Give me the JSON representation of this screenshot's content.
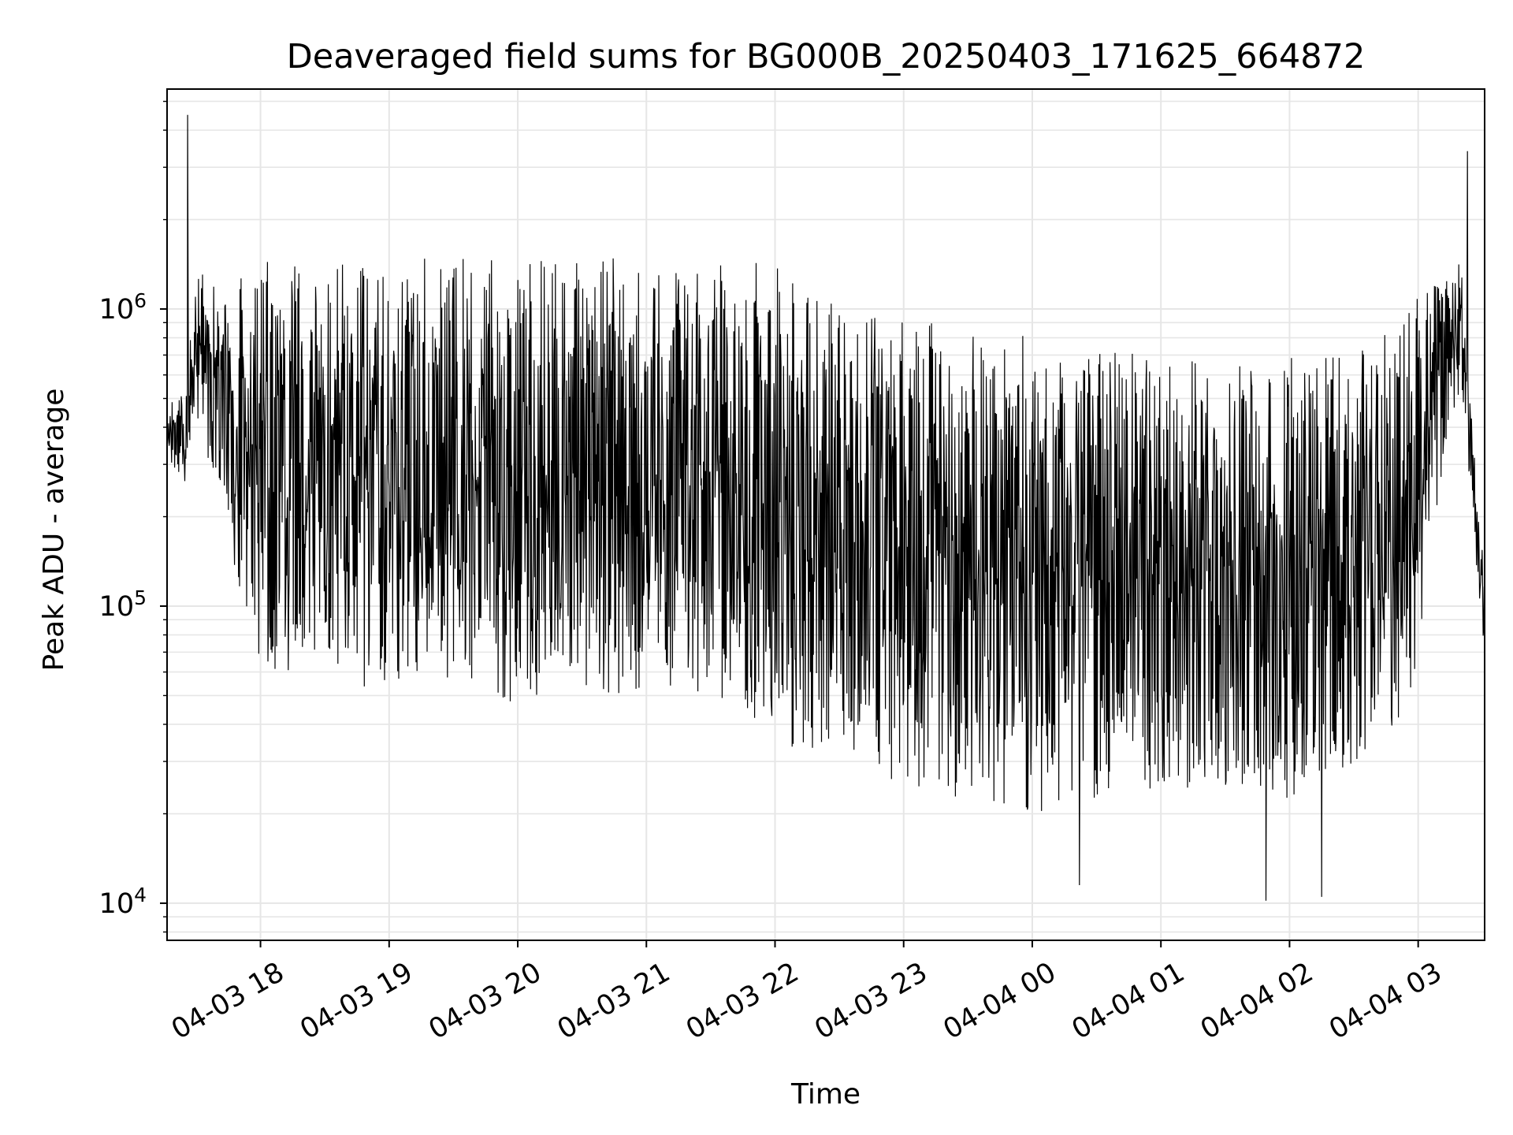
{
  "chart_data": {
    "type": "line",
    "title": "Deaveraged field sums for BG000B_20250403_171625_664872",
    "xlabel": "Time",
    "ylabel": "Peak ADU - average",
    "yscale": "log",
    "ylim": [
      7500,
      5500000
    ],
    "xlim": [
      "2025-04-03 17:16:25",
      "2025-04-04 03:31:00"
    ],
    "grid": true,
    "legend": "none",
    "line_color": "#000000",
    "grid_color": "#e6e6e6",
    "x_ticks": [
      {
        "t": "2025-04-03 18:00",
        "label": "04-03 18"
      },
      {
        "t": "2025-04-03 19:00",
        "label": "04-03 19"
      },
      {
        "t": "2025-04-03 20:00",
        "label": "04-03 20"
      },
      {
        "t": "2025-04-03 21:00",
        "label": "04-03 21"
      },
      {
        "t": "2025-04-03 22:00",
        "label": "04-03 22"
      },
      {
        "t": "2025-04-03 23:00",
        "label": "04-03 23"
      },
      {
        "t": "2025-04-04 00:00",
        "label": "04-04 00"
      },
      {
        "t": "2025-04-04 01:00",
        "label": "04-04 01"
      },
      {
        "t": "2025-04-04 02:00",
        "label": "04-04 02"
      },
      {
        "t": "2025-04-04 03:00",
        "label": "04-04 03"
      }
    ],
    "y_ticks": [
      {
        "value": 10000,
        "base": "10",
        "exp": "4"
      },
      {
        "value": 100000,
        "base": "10",
        "exp": "5"
      },
      {
        "value": 1000000,
        "base": "10",
        "exp": "6"
      }
    ],
    "envelope_note_values": {
      "x": [
        "2025-04-03 17:16",
        "2025-04-03 17:25",
        "2025-04-03 17:30",
        "2025-04-03 18:00",
        "2025-04-03 18:30",
        "2025-04-03 19:00",
        "2025-04-03 19:30",
        "2025-04-03 20:00",
        "2025-04-03 20:30",
        "2025-04-03 21:00",
        "2025-04-03 21:30",
        "2025-04-03 22:00",
        "2025-04-03 22:30",
        "2025-04-03 23:00",
        "2025-04-03 23:30",
        "2025-04-04 00:00",
        "2025-04-04 00:30",
        "2025-04-04 01:00",
        "2025-04-04 01:30",
        "2025-04-04 02:00",
        "2025-04-04 02:30",
        "2025-04-04 02:55",
        "2025-04-04 03:10",
        "2025-04-04 03:20",
        "2025-04-04 03:31"
      ],
      "upper": [
        500000,
        520000,
        1300000,
        1500000,
        1500000,
        1400000,
        1600000,
        1500000,
        1500000,
        1500000,
        1500000,
        1400000,
        1000000,
        900000,
        900000,
        800000,
        750000,
        700000,
        700000,
        700000,
        700000,
        1000000,
        1400000,
        1500000,
        130000
      ],
      "lower": [
        320000,
        250000,
        450000,
        60000,
        55000,
        50000,
        55000,
        45000,
        50000,
        50000,
        48000,
        35000,
        30000,
        25000,
        22000,
        20000,
        22000,
        24000,
        22000,
        22000,
        28000,
        40000,
        250000,
        550000,
        60000
      ]
    },
    "spikes": [
      {
        "t": "2025-04-03 17:26",
        "value": 4500000
      },
      {
        "t": "2025-04-04 00:22",
        "value": 11500
      },
      {
        "t": "2025-04-04 01:49",
        "value": 10200
      },
      {
        "t": "2025-04-04 02:15",
        "value": 10500
      },
      {
        "t": "2025-04-04 03:23",
        "value": 3400000
      }
    ]
  }
}
